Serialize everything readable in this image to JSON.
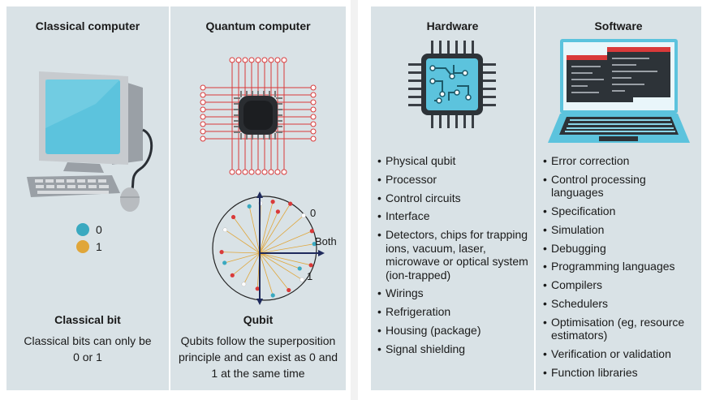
{
  "left": {
    "classical": {
      "title": "Classical computer",
      "legend": [
        {
          "label": "0",
          "color": "#3aa9c0"
        },
        {
          "label": "1",
          "color": "#e0a63a"
        }
      ],
      "bit_title": "Classical bit",
      "bit_desc": "Classical bits can only be 0 or 1"
    },
    "quantum": {
      "title": "Quantum computer",
      "axis_0": "0",
      "axis_both": "Both",
      "axis_1": "1",
      "qubit_title": "Qubit",
      "qubit_desc": "Qubits follow the superposition principle and can exist as 0 and 1 at the same time"
    }
  },
  "right": {
    "hardware": {
      "title": "Hardware",
      "items": [
        "Physical qubit",
        "Processor",
        "Control circuits",
        "Interface",
        "Detectors, chips for trapping ions, vacuum, laser, microwave or optical system (ion-trapped)",
        "Wirings",
        "Refrigeration",
        "Housing (package)",
        "Signal shielding"
      ]
    },
    "software": {
      "title": "Software",
      "items": [
        "Error correction",
        "Control processing languages",
        "Specification",
        "Simulation",
        "Debugging",
        "Programming languages",
        "Compilers",
        "Schedulers",
        "Optimisation (eg, resource estimators)",
        "Verification or validation",
        "Function libraries"
      ]
    }
  },
  "colors": {
    "panel_bg": "#d9e2e6",
    "red": "#d93a3a",
    "blue": "#3aa9c0",
    "orange": "#e0a63a",
    "navy": "#1f2a5c",
    "screen": "#5cc3dd",
    "dark": "#3a3f45"
  }
}
